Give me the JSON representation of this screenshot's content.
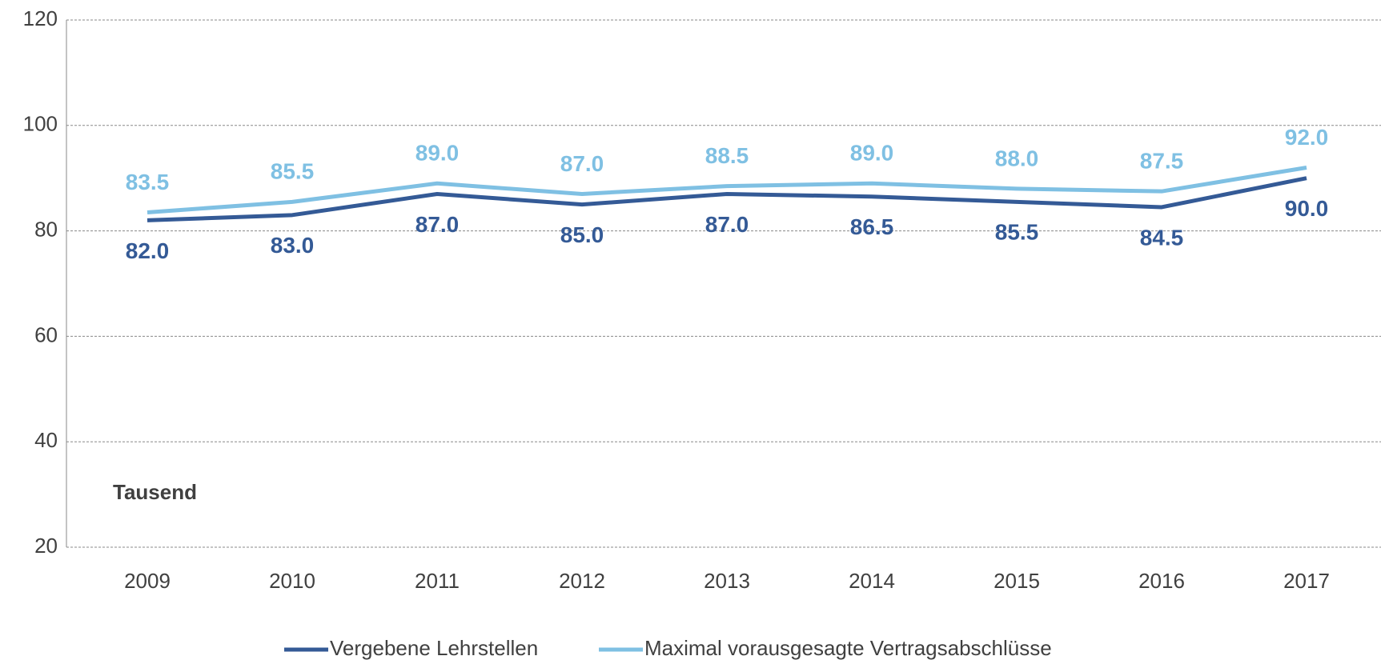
{
  "chart_data": {
    "type": "line",
    "annotation": "Tausend",
    "categories": [
      "2009",
      "2010",
      "2011",
      "2012",
      "2013",
      "2014",
      "2015",
      "2016",
      "2017"
    ],
    "series": [
      {
        "name": "Vergebene Lehrstellen",
        "color": "#345a96",
        "values": [
          82,
          83,
          87,
          85,
          87,
          86.5,
          85.5,
          84.5,
          90
        ],
        "value_labels": [
          "82.0",
          "83.0",
          "87.0",
          "85.0",
          "87.0",
          "86.5",
          "85.5",
          "84.5",
          "90.0"
        ]
      },
      {
        "name": "Maximal vorausgesagte Vertragsabschlüsse",
        "color": "#7fc0e3",
        "values": [
          83.5,
          85.5,
          89,
          87,
          88.5,
          89,
          88,
          87.5,
          92
        ],
        "value_labels": [
          "83.5",
          "85.5",
          "89.0",
          "87.0",
          "88.5",
          "89.0",
          "88.0",
          "87.5",
          "92.0"
        ]
      }
    ],
    "ylim": [
      20,
      120
    ],
    "yticks": [
      20,
      40,
      60,
      80,
      100,
      120
    ],
    "grid": true,
    "legend": "bottom"
  }
}
